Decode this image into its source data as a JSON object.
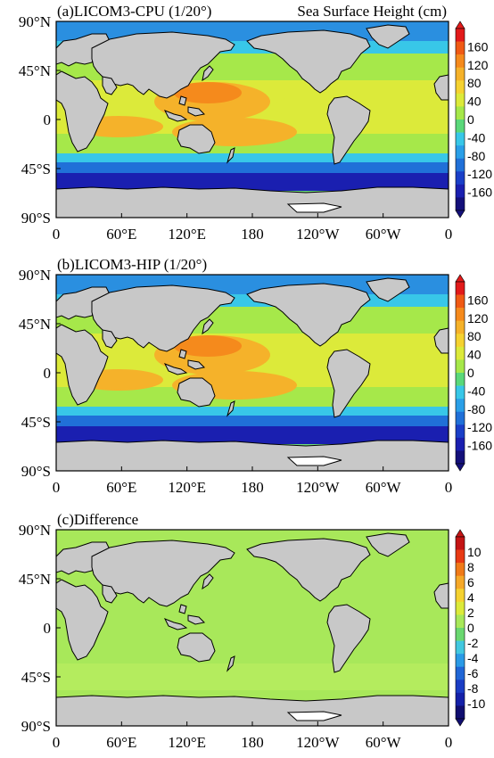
{
  "colors": {
    "ocean_low": "#1a1fb0",
    "ocean_mid": "#38c7e8",
    "ocean_green": "#a6e84a",
    "ocean_high": "#f0b428",
    "ocean_peak": "#e86a10",
    "land": "#c8c8c8",
    "ice": "#ffffff",
    "diff_bg": "#a8e85a"
  },
  "panels": [
    {
      "title": "(a)LICOM3-CPU (1/20°)",
      "subtitle": "Sea Surface Height (cm)",
      "lat_ticks": [
        "90°N",
        "45°N",
        "0",
        "45°S",
        "90°S"
      ],
      "lon_ticks": [
        "0",
        "60°E",
        "120°E",
        "180",
        "120°W",
        "60°W",
        "0"
      ],
      "colorbar_labels": [
        "160",
        "120",
        "80",
        "40",
        "0",
        "-40",
        "-80",
        "-120",
        "-160"
      ]
    },
    {
      "title": "(b)LICOM3-HIP (1/20°)",
      "subtitle": "",
      "lat_ticks": [
        "90°N",
        "45°N",
        "0",
        "45°S",
        "90°S"
      ],
      "lon_ticks": [
        "0",
        "60°E",
        "120°E",
        "180",
        "120°W",
        "60°W",
        "0"
      ],
      "colorbar_labels": [
        "160",
        "120",
        "80",
        "40",
        "0",
        "-40",
        "-80",
        "-120",
        "-160"
      ]
    },
    {
      "title": "(c)Difference",
      "subtitle": "",
      "lat_ticks": [
        "90°N",
        "45°N",
        "0",
        "45°S",
        "90°S"
      ],
      "lon_ticks": [
        "0",
        "60°E",
        "120°E",
        "180",
        "120°W",
        "60°W",
        "0"
      ],
      "colorbar_labels": [
        "10",
        "8",
        "6",
        "4",
        "2",
        "0",
        "-2",
        "-4",
        "-6",
        "-8",
        "-10"
      ]
    }
  ],
  "colorbar_colors": {
    "ssh": [
      "#e21a1a",
      "#f05a14",
      "#f58a1c",
      "#f5b22a",
      "#f5d230",
      "#dcea3a",
      "#a6e84a",
      "#5ad87a",
      "#38c7e8",
      "#2a9fe8",
      "#2070d8",
      "#1a3fc8",
      "#1a1fb0",
      "#14107a"
    ],
    "diff": [
      "#c41414",
      "#e83a14",
      "#f07a18",
      "#f5a828",
      "#f5d230",
      "#dcea3a",
      "#a8e85a",
      "#6ad870",
      "#42c8e0",
      "#2a9ae6",
      "#2066d6",
      "#1a3cc4",
      "#1420a8",
      "#100e70"
    ]
  }
}
